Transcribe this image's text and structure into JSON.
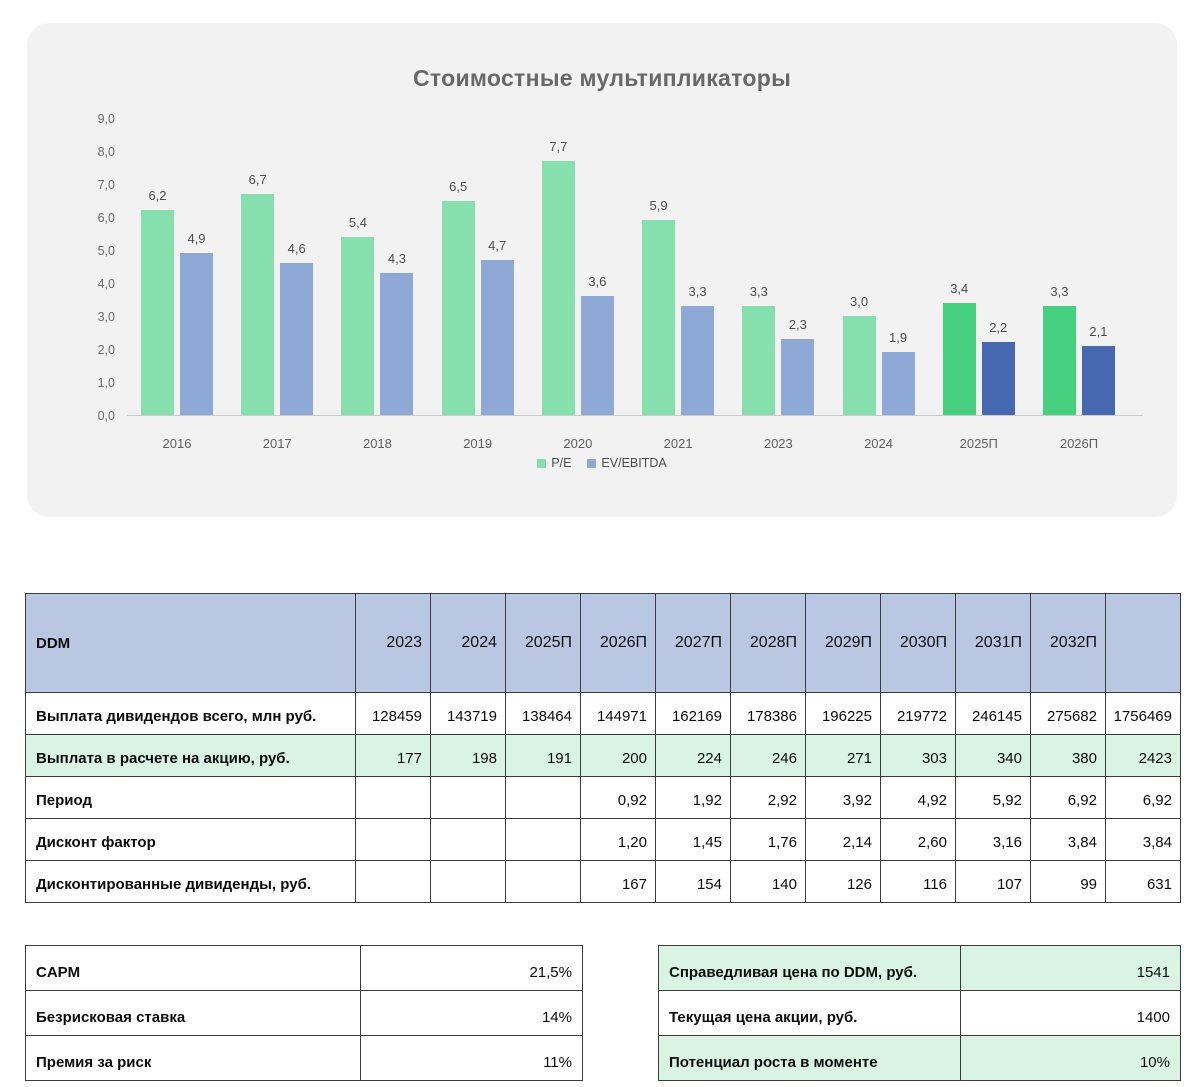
{
  "chart_data": {
    "type": "bar",
    "title": "Стоимостные мультипликаторы",
    "categories": [
      "2016",
      "2017",
      "2018",
      "2019",
      "2020",
      "2021",
      "2023",
      "2024",
      "2025П",
      "2026П"
    ],
    "series": [
      {
        "name": "P/E",
        "values": [
          6.2,
          6.7,
          5.4,
          6.5,
          7.7,
          5.9,
          3.3,
          3.0,
          3.4,
          3.3
        ]
      },
      {
        "name": "EV/EBITDA",
        "values": [
          4.9,
          4.6,
          4.3,
          4.7,
          3.6,
          3.3,
          2.3,
          1.9,
          2.2,
          2.1
        ]
      }
    ],
    "forecast_categories": [
      "2025П",
      "2026П"
    ],
    "ylim": [
      0,
      9
    ],
    "yticks": [
      "9,0",
      "8,0",
      "7,0",
      "6,0",
      "5,0",
      "4,0",
      "3,0",
      "2,0",
      "1,0",
      "0,0"
    ],
    "grid": false,
    "legend": [
      "P/E",
      "EV/EBITDA"
    ],
    "legend_position": "bottom",
    "colors": {
      "pe": "#87dfad",
      "ev_ebitda": "#8fa9d6",
      "pe_forecast": "#47d07f",
      "ev_ebitda_forecast": "#4568b0"
    }
  },
  "ddm_table": {
    "header": [
      "DDM",
      "2023",
      "2024",
      "2025П",
      "2026П",
      "2027П",
      "2028П",
      "2029П",
      "2030П",
      "2031П",
      "2032П",
      ""
    ],
    "rows": [
      {
        "label": "Выплата дивидендов всего, млн руб.",
        "highlight": false,
        "values": [
          "128459",
          "143719",
          "138464",
          "144971",
          "162169",
          "178386",
          "196225",
          "219772",
          "246145",
          "275682",
          "1756469"
        ]
      },
      {
        "label": "Выплата в расчете на акцию, руб.",
        "highlight": true,
        "values": [
          "177",
          "198",
          "191",
          "200",
          "224",
          "246",
          "271",
          "303",
          "340",
          "380",
          "2423"
        ]
      },
      {
        "label": "Период",
        "highlight": false,
        "values": [
          "",
          "",
          "",
          "0,92",
          "1,92",
          "2,92",
          "3,92",
          "4,92",
          "5,92",
          "6,92",
          "6,92"
        ]
      },
      {
        "label": "Дисконт фактор",
        "highlight": false,
        "values": [
          "",
          "",
          "",
          "1,20",
          "1,45",
          "1,76",
          "2,14",
          "2,60",
          "3,16",
          "3,84",
          "3,84"
        ]
      },
      {
        "label": "Дисконтированные дивиденды, руб.",
        "highlight": false,
        "values": [
          "",
          "",
          "",
          "167",
          "154",
          "140",
          "126",
          "116",
          "107",
          "99",
          "631"
        ]
      }
    ]
  },
  "capm_table": {
    "rows": [
      {
        "label": "CAPM",
        "value": "21,5%",
        "highlight": false
      },
      {
        "label": "Безрисковая ставка",
        "value": "14%",
        "highlight": false
      },
      {
        "label": "Премия за риск",
        "value": "11%",
        "highlight": false
      }
    ]
  },
  "valuation_table": {
    "rows": [
      {
        "label": "Справедливая цена по DDM, руб.",
        "value": "1541",
        "highlight": true
      },
      {
        "label": "Текущая цена акции, руб.",
        "value": "1400",
        "highlight": false
      },
      {
        "label": "Потенциал роста в моменте",
        "value": "10%",
        "highlight": true
      }
    ]
  },
  "colors": {
    "card_background": "#f2f2f3",
    "table_header_background": "#b9c7e3",
    "highlight_row_background": "#d9f3e5",
    "border": "#3c3c3c"
  }
}
